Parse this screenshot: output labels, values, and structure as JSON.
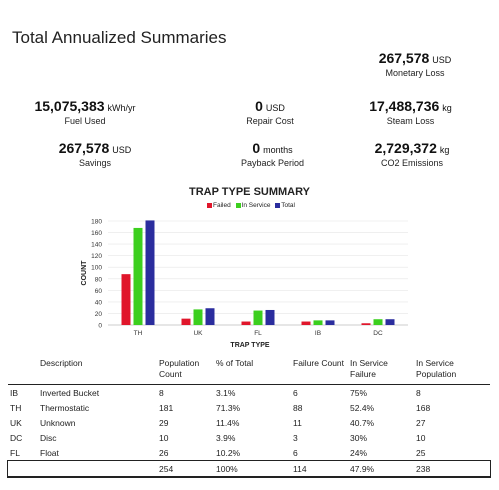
{
  "page": {
    "title": "Total Annualized Summaries"
  },
  "metrics": {
    "monetary_loss": {
      "value": "267,578",
      "unit": "USD",
      "label": "Monetary Loss"
    },
    "fuel_used": {
      "value": "15,075,383",
      "unit": "kWh/yr",
      "label": "Fuel Used"
    },
    "repair_cost": {
      "value": "0",
      "unit": "USD",
      "label": "Repair Cost"
    },
    "steam_loss": {
      "value": "17,488,736",
      "unit": "kg",
      "label": "Steam Loss"
    },
    "savings": {
      "value": "267,578",
      "unit": "USD",
      "label": "Savings"
    },
    "payback_period": {
      "value": "0",
      "unit": "months",
      "label": "Payback Period"
    },
    "co2_emissions": {
      "value": "2,729,372",
      "unit": "kg",
      "label": "CO2 Emissions"
    }
  },
  "chart_data": {
    "type": "bar",
    "title": "TRAP TYPE SUMMARY",
    "xlabel": "TRAP TYPE",
    "ylabel": "COUNT",
    "categories": [
      "TH",
      "UK",
      "FL",
      "IB",
      "DC"
    ],
    "series": [
      {
        "name": "Failed",
        "color": "#e0162b",
        "values": [
          88,
          11,
          6,
          6,
          3
        ]
      },
      {
        "name": "In Service",
        "color": "#3ccf1e",
        "values": [
          168,
          27,
          25,
          8,
          10
        ]
      },
      {
        "name": "Total",
        "color": "#2b2d9e",
        "values": [
          181,
          29,
          26,
          8,
          10
        ]
      }
    ],
    "ylim": [
      0,
      180
    ],
    "yticks": [
      "0",
      "20",
      "40",
      "60",
      "80",
      "100",
      "120",
      "140",
      "160",
      "180"
    ],
    "grid": true,
    "legend_position": "top"
  },
  "table": {
    "headers": [
      "",
      "Description",
      "Population Count",
      "% of Total",
      "Failure Count",
      "In Service Failure",
      "In Service Population"
    ],
    "rows": [
      [
        "IB",
        "Inverted Bucket",
        "8",
        "3.1%",
        "6",
        "75%",
        "8"
      ],
      [
        "TH",
        "Thermostatic",
        "181",
        "71.3%",
        "88",
        "52.4%",
        "168"
      ],
      [
        "UK",
        "Unknown",
        "29",
        "11.4%",
        "11",
        "40.7%",
        "27"
      ],
      [
        "DC",
        "Disc",
        "10",
        "3.9%",
        "3",
        "30%",
        "10"
      ],
      [
        "FL",
        "Float",
        "26",
        "10.2%",
        "6",
        "24%",
        "25"
      ]
    ],
    "total": [
      "",
      "",
      "254",
      "100%",
      "114",
      "47.9%",
      "238"
    ]
  }
}
